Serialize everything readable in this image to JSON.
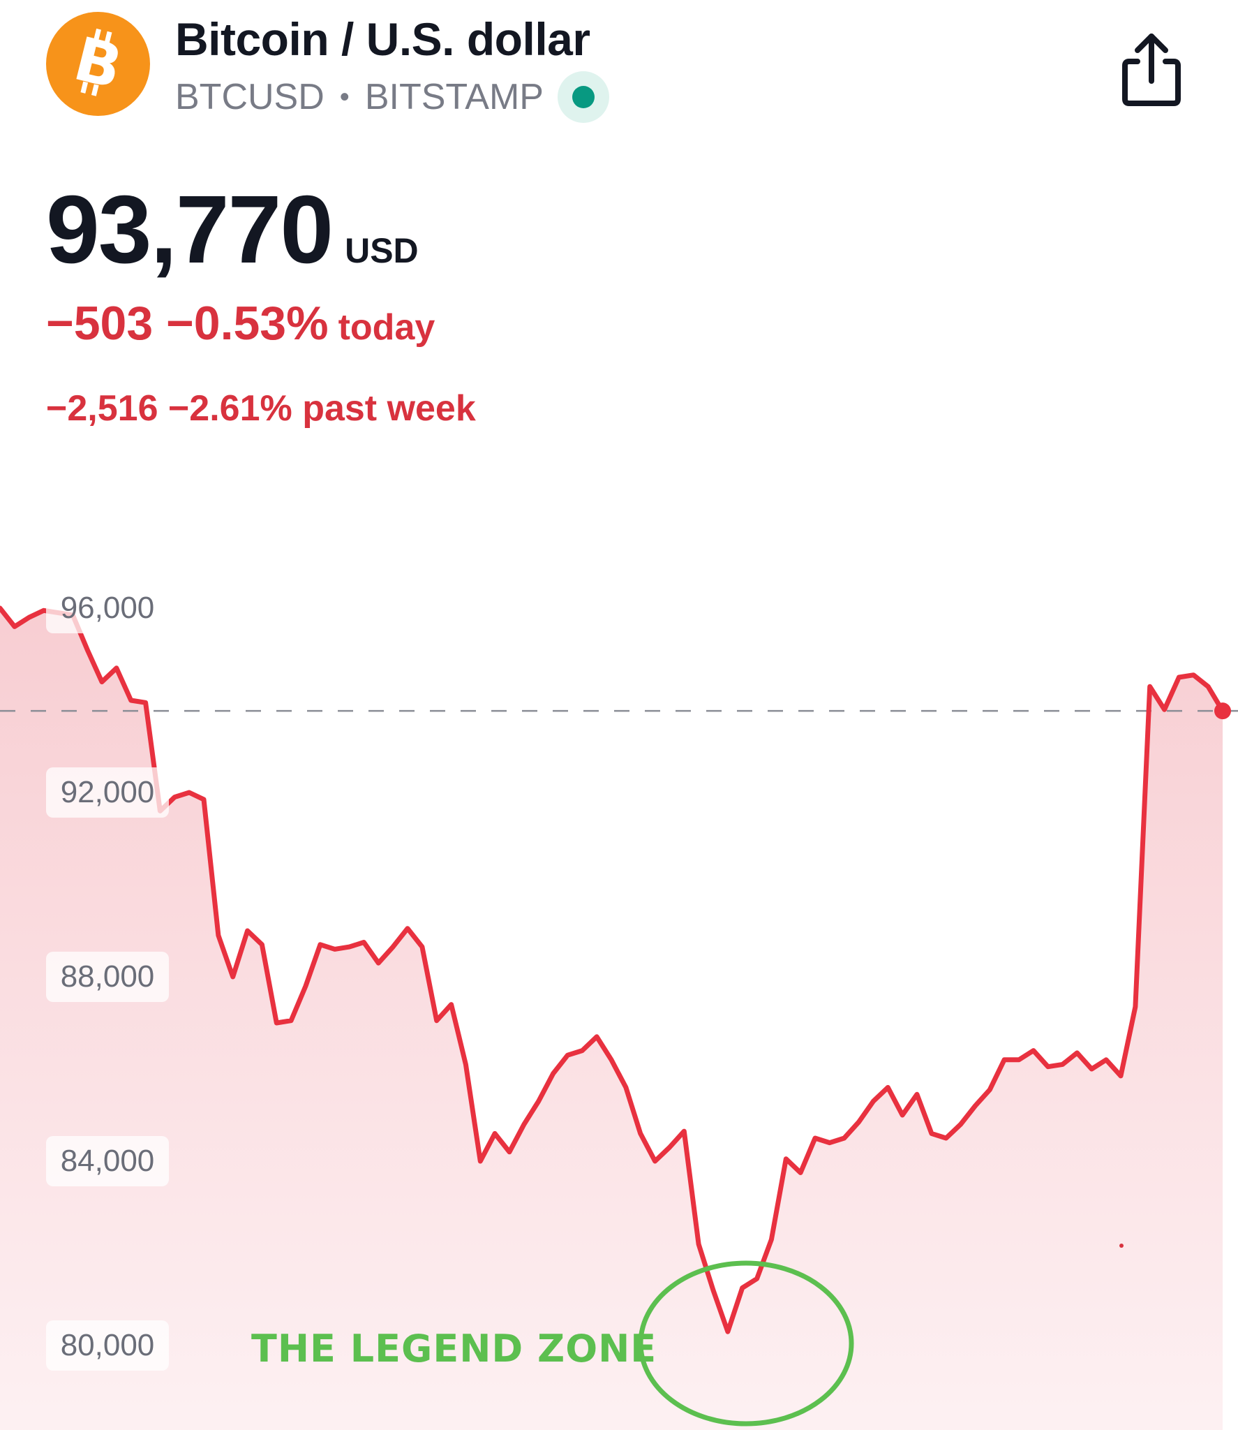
{
  "header": {
    "title": "Bitcoin / U.S. dollar",
    "symbol": "BTCUSD",
    "separator": "•",
    "exchange": "BITSTAMP",
    "logo_icon": "bitcoin-icon",
    "live_status_icon": "market-open-dot-icon",
    "share_icon": "share-icon"
  },
  "quote": {
    "price": "93,770",
    "currency": "USD",
    "change_today": "−503 −0.53%",
    "today_label": "today",
    "change_week": "−2,516 −2.61% past week"
  },
  "colors": {
    "brand": "#f7931a",
    "line": "#e8313f",
    "fill": "#f7c8cd",
    "negative_text": "#d8323e",
    "live": "#089981",
    "annotation": "#5cbf4f"
  },
  "annotation_text": "THE LEGEND ZONE",
  "chart_data": {
    "type": "area",
    "title": "",
    "xlabel": "",
    "ylabel": "",
    "ylim": [
      78000,
      97800
    ],
    "yticks": [
      96000,
      92000,
      88000,
      84000,
      80000
    ],
    "ytick_labels": [
      "96,000",
      "92,000",
      "88,000",
      "84,000",
      "80,000"
    ],
    "current_price_line": 93770,
    "grid": false,
    "legend": "none",
    "x": [
      0,
      1,
      2,
      3,
      4,
      5,
      6,
      7,
      8,
      9,
      10,
      11,
      12,
      13,
      14,
      15,
      16,
      17,
      18,
      19,
      20,
      21,
      22,
      23,
      24,
      25,
      26,
      27,
      28,
      29,
      30,
      31,
      32,
      33,
      34,
      35,
      36,
      37,
      38,
      39,
      40,
      41,
      42,
      43,
      44,
      45,
      46,
      47,
      48,
      49,
      50,
      51,
      52,
      53,
      54,
      55,
      56,
      57,
      58,
      59,
      60,
      61,
      62,
      63,
      64,
      65,
      66,
      67,
      68,
      69,
      70,
      71,
      72,
      73,
      74,
      75,
      76,
      77,
      78,
      79,
      80,
      81,
      82,
      83,
      84
    ],
    "series": [
      {
        "values": [
          96000,
          95600,
          95800,
          95950,
          95900,
          95850,
          95100,
          94400,
          94700,
          94000,
          93950,
          91600,
          91900,
          92000,
          91850,
          88900,
          88000,
          89000,
          88700,
          87000,
          87050,
          87800,
          88700,
          88600,
          88650,
          88750,
          88300,
          88650,
          89050,
          88650,
          87050,
          87400,
          86100,
          84000,
          84600,
          84200,
          84800,
          85300,
          85900,
          86300,
          86400,
          86700,
          86200,
          85600,
          84600,
          84000,
          84300,
          84650,
          82200,
          81200,
          80300,
          81250,
          81450,
          82300,
          84050,
          83750,
          84500,
          84400,
          84500,
          84850,
          85300,
          85600,
          85000,
          85450,
          84600,
          84500,
          84800,
          85200,
          85550,
          86200,
          86200,
          86400,
          86050,
          86100,
          86350,
          86000,
          86200,
          85850,
          87350,
          94300,
          93800,
          94500,
          94550,
          94300,
          93770
        ]
      }
    ]
  }
}
